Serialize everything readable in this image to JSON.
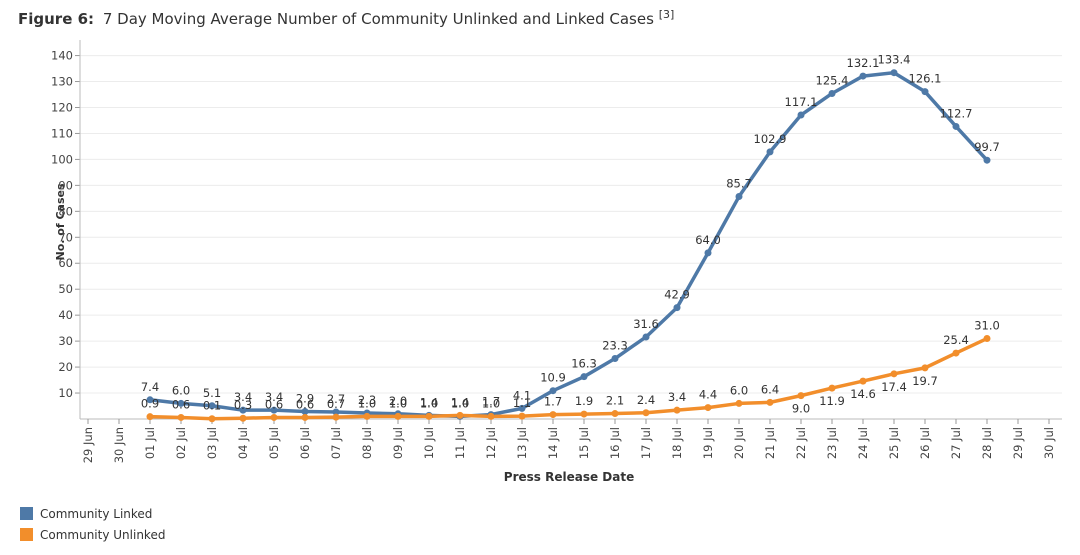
{
  "chart_data": {
    "type": "line",
    "title_prefix": "Figure 6:",
    "title": "7 Day Moving Average Number of Community Unlinked and Linked Cases",
    "title_ref": "[3]",
    "x_label": "Press Release Date",
    "y_label": "No. of Cases",
    "categories": [
      "29 Jun",
      "30 Jun",
      "01 Jul",
      "02 Jul",
      "03 Jul",
      "04 Jul",
      "05 Jul",
      "06 Jul",
      "07 Jul",
      "08 Jul",
      "09 Jul",
      "10 Jul",
      "11 Jul",
      "12 Jul",
      "13 Jul",
      "14 Jul",
      "15 Jul",
      "16 Jul",
      "17 Jul",
      "18 Jul",
      "19 Jul",
      "20 Jul",
      "21 Jul",
      "22 Jul",
      "23 Jul",
      "24 Jul",
      "25 Jul",
      "26 Jul",
      "27 Jul",
      "28 Jul",
      "29 Jul",
      "30 Jul"
    ],
    "series": [
      {
        "name": "Community Linked",
        "color": "#4e79a7",
        "values": [
          null,
          null,
          7.4,
          6,
          5.1,
          3.4,
          3.4,
          2.9,
          2.7,
          2.3,
          2,
          1.4,
          1,
          1.7,
          4.1,
          10.9,
          16.3,
          23.3,
          31.6,
          42.9,
          64,
          85.7,
          102.9,
          117.1,
          125.4,
          132.1,
          133.4,
          126.1,
          112.7,
          99.7,
          null,
          null
        ],
        "value_labels": [
          null,
          null,
          "7.4",
          "6.0",
          "5.1",
          "3.4",
          "3.4",
          "2.9",
          "2.7",
          "2.3",
          "2.0",
          "1.4",
          "1.0",
          "1.7",
          "4.1",
          "10.9",
          "16.3",
          "23.3",
          "31.6",
          "42.9",
          "64.0",
          "85.7",
          "102.9",
          "117.1",
          "125.4",
          "132.1",
          "133.4",
          "126.1",
          "112.7",
          "99.7",
          null,
          null
        ]
      },
      {
        "name": "Community Unlinked",
        "color": "#f28e2b",
        "values": [
          null,
          null,
          0.9,
          0.6,
          0.1,
          0.3,
          0.6,
          0.6,
          0.7,
          1,
          1,
          1,
          1.4,
          1,
          1.1,
          1.7,
          1.9,
          2.1,
          2.4,
          3.4,
          4.4,
          6,
          6.4,
          9,
          11.9,
          14.6,
          17.4,
          19.7,
          25.4,
          31,
          null,
          null
        ],
        "value_labels": [
          null,
          null,
          "0.9",
          "0.6",
          "0.1",
          "0.3",
          "0.6",
          "0.6",
          "0.7",
          "1.0",
          "1.0",
          "1.0",
          "1.4",
          "1.0",
          "1.1",
          "1.7",
          "1.9",
          "2.1",
          "2.4",
          "3.4",
          "4.4",
          "6.0",
          "6.4",
          "9.0",
          "11.9",
          "14.6",
          "17.4",
          "19.7",
          "25.4",
          "31.0",
          null,
          null
        ]
      }
    ],
    "ylim": [
      0,
      146
    ],
    "yticks": [
      10,
      20,
      30,
      40,
      50,
      60,
      70,
      80,
      90,
      100,
      110,
      120,
      130,
      140
    ],
    "grid": true,
    "legend": "bottom-left"
  }
}
